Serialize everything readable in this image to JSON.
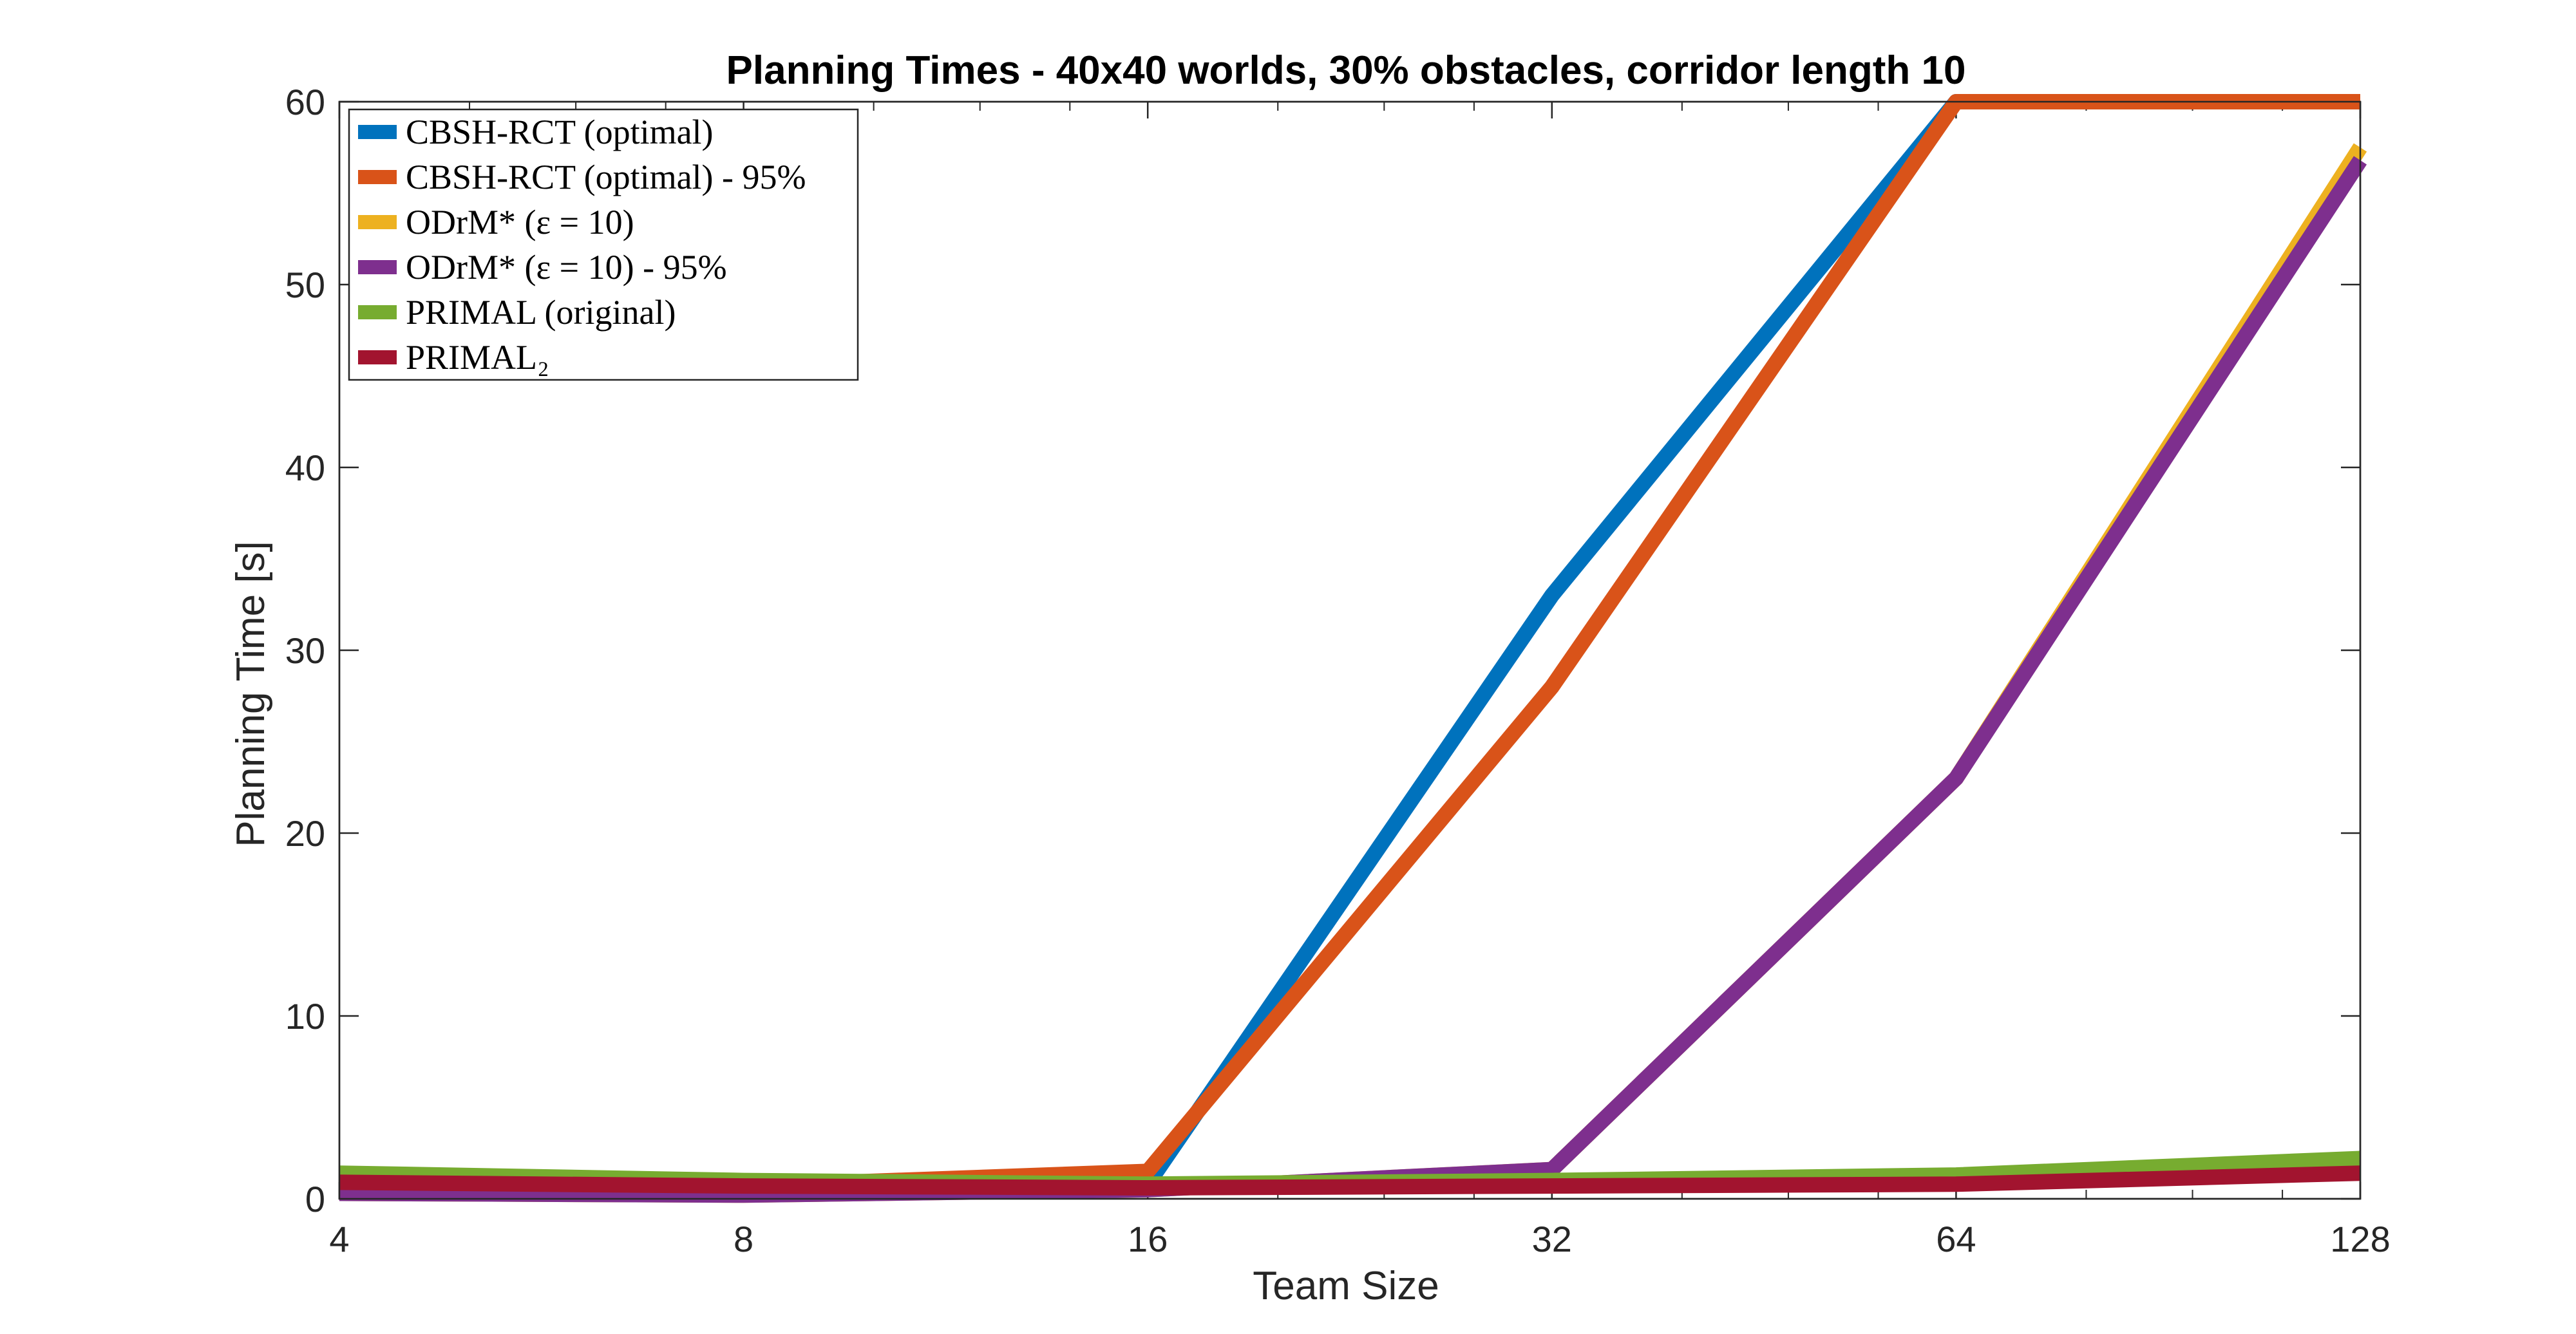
{
  "chart_data": {
    "type": "line",
    "title": "Planning Times - 40x40 worlds, 30% obstacles, corridor length 10",
    "xlabel": "Team Size",
    "ylabel": "Planning Time [s]",
    "x_scale": "log2",
    "xlim": [
      4,
      128
    ],
    "ylim": [
      0,
      60
    ],
    "x": [
      4,
      8,
      16,
      32,
      64,
      128
    ],
    "xticks": [
      "4",
      "8",
      "16",
      "32",
      "64",
      "128"
    ],
    "yticks": [
      "0",
      "10",
      "20",
      "30",
      "40",
      "50",
      "60"
    ],
    "grid": false,
    "legend_position": "top-left",
    "series": [
      {
        "name": "CBSH-RCT (optimal)",
        "color": "#0072BD",
        "values": [
          0.8,
          0.7,
          0.8,
          33,
          60,
          60
        ]
      },
      {
        "name": "CBSH-RCT (optimal) - 95%",
        "color": "#D95319",
        "values": [
          0.8,
          0.7,
          1.5,
          28,
          60,
          60
        ]
      },
      {
        "name": "ODrM* (ε = 10)",
        "color": "#EDB120",
        "values": [
          0.3,
          0.2,
          0.5,
          1.6,
          23,
          57.5
        ]
      },
      {
        "name": "ODrM* (ε = 10) - 95%",
        "color": "#7E2F8E",
        "values": [
          0.3,
          0.2,
          0.5,
          1.6,
          23,
          56.8
        ]
      },
      {
        "name": "PRIMAL (original)",
        "color": "#77AC30",
        "values": [
          1.4,
          1.0,
          0.8,
          1.0,
          1.3,
          2.2
        ]
      },
      {
        "name": "PRIMAL₂",
        "color": "#A2142F",
        "values": [
          0.9,
          0.7,
          0.6,
          0.7,
          0.8,
          1.4
        ]
      }
    ]
  }
}
